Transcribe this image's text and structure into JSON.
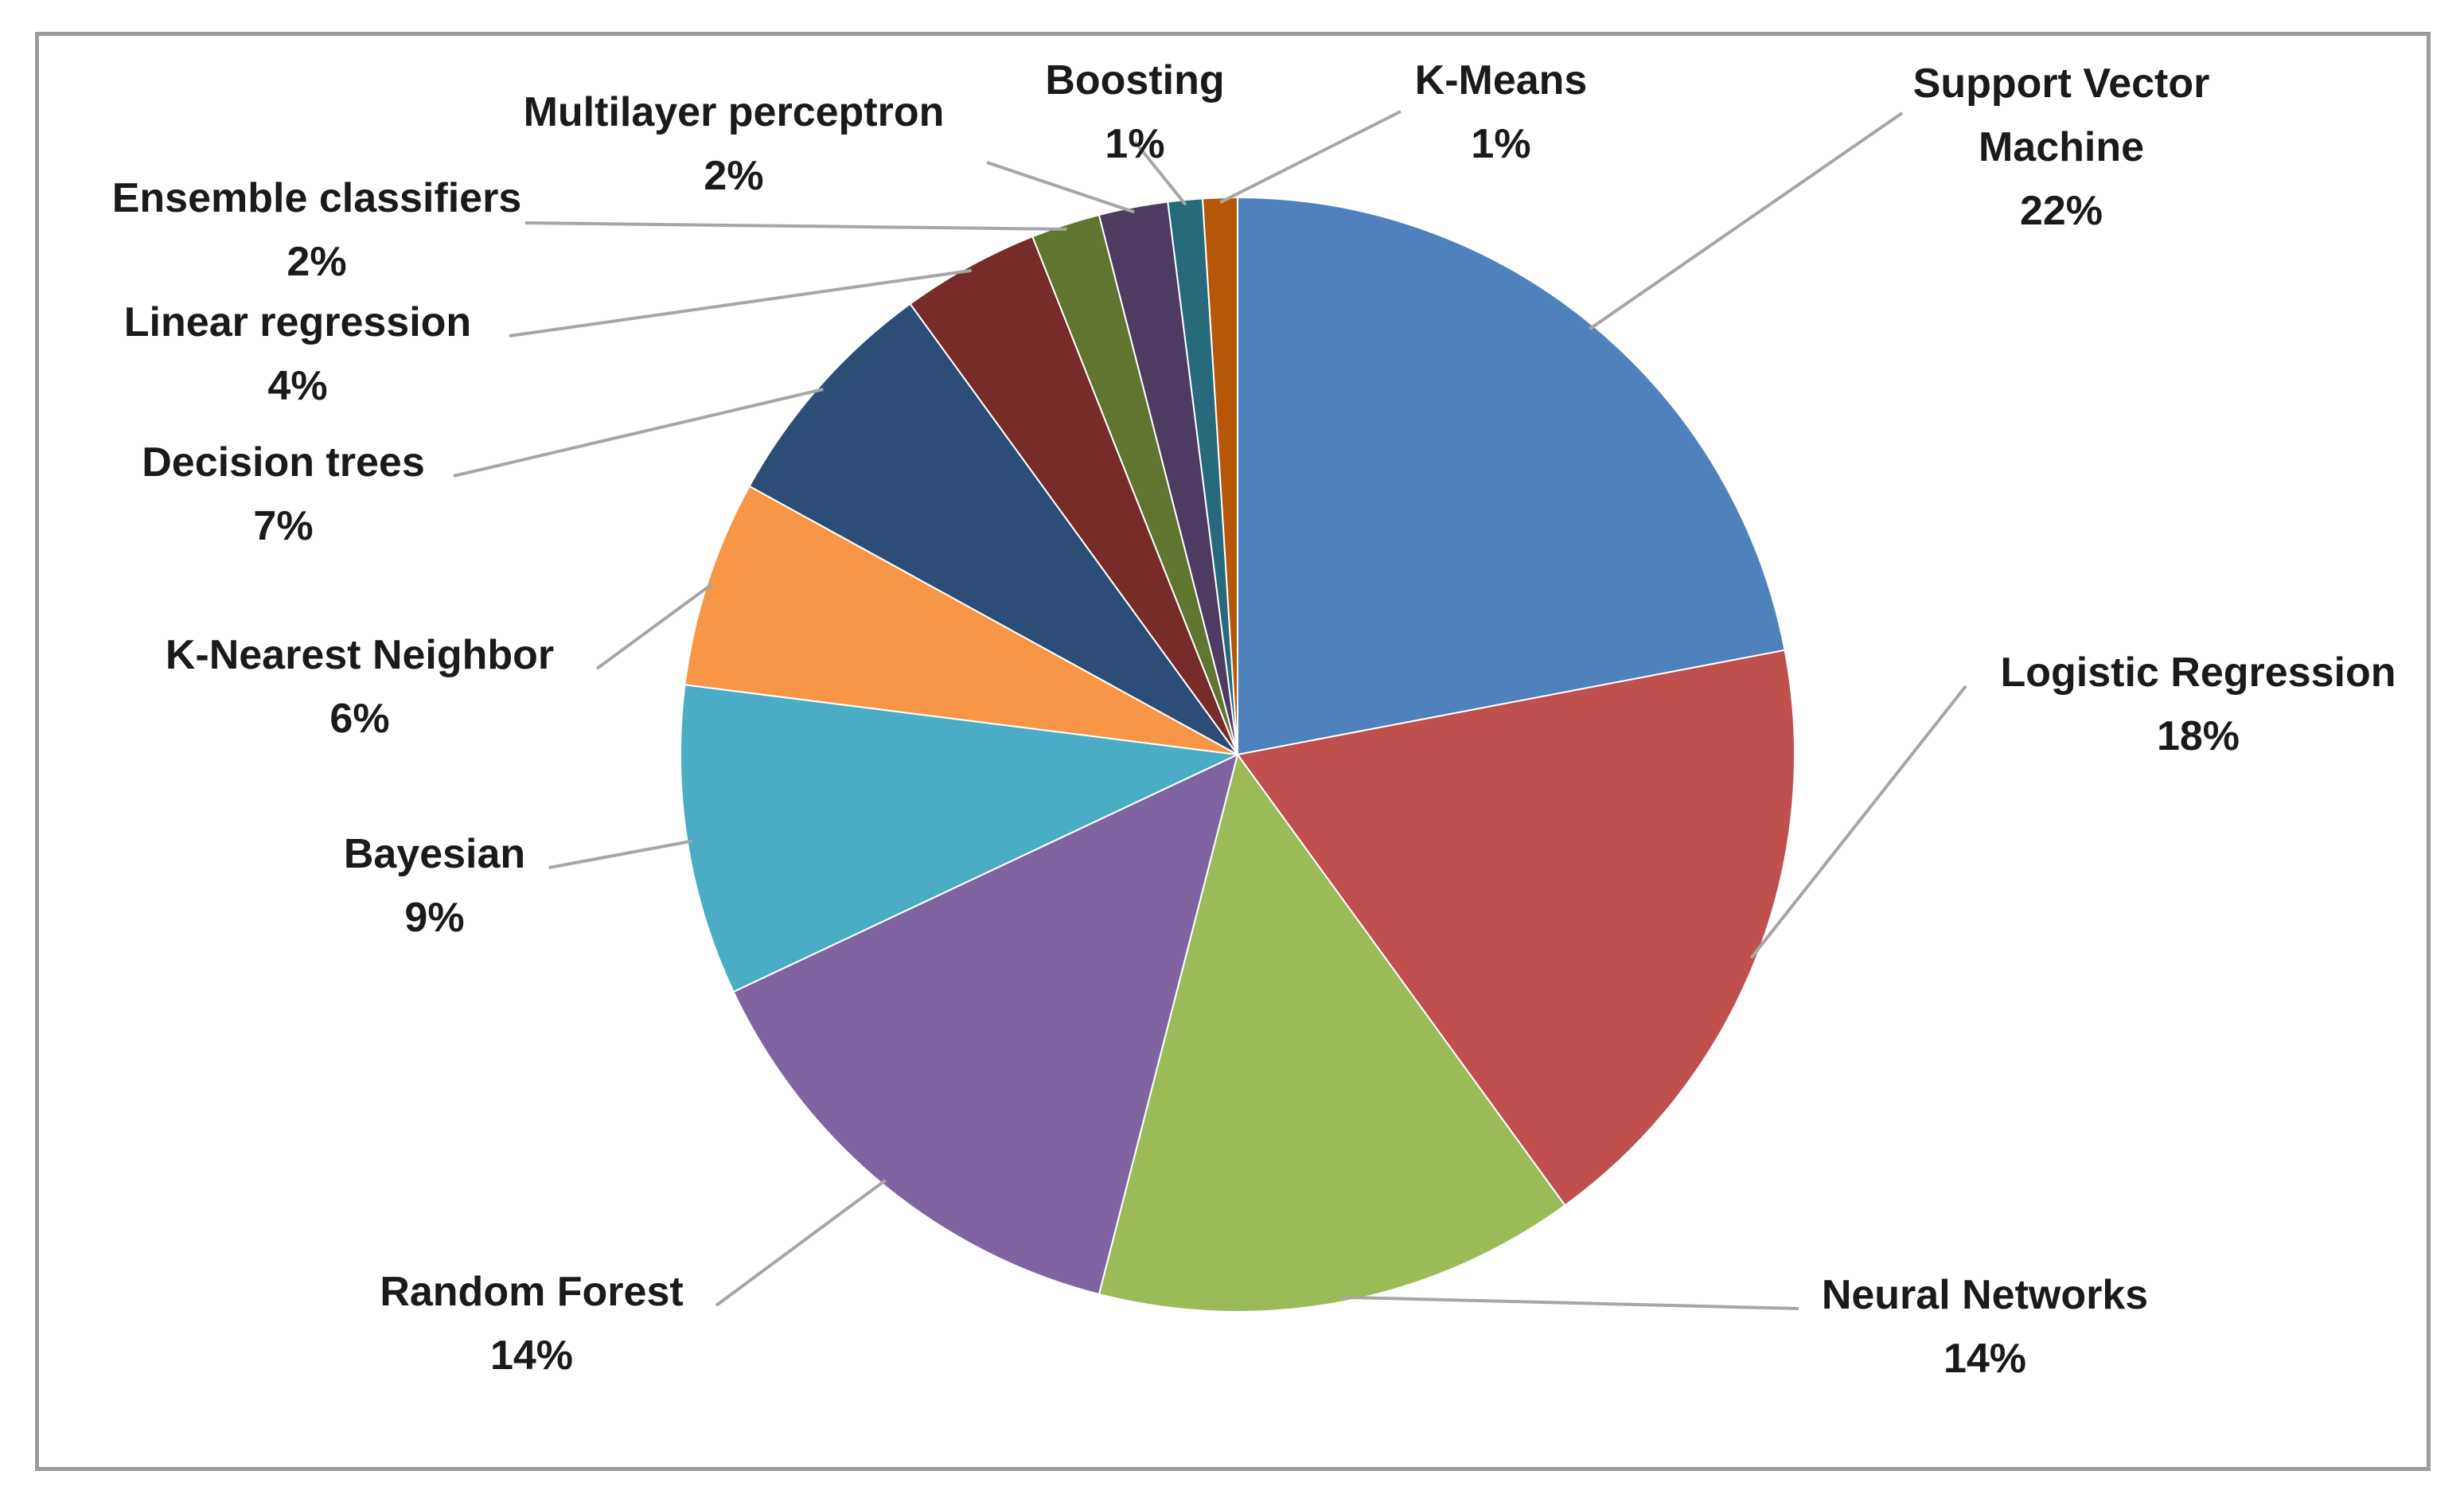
{
  "chart_data": {
    "type": "pie",
    "title": "",
    "unit": "%",
    "slices": [
      {
        "name": "Support Vector Machine",
        "label_lines": [
          "Support Vector",
          "Machine"
        ],
        "value": 22,
        "display": "22%",
        "color": "#4F81BD"
      },
      {
        "name": "Logistic Regression",
        "label_lines": [
          "Logistic Regression"
        ],
        "value": 18,
        "display": "18%",
        "color": "#C0504D"
      },
      {
        "name": "Neural Networks",
        "label_lines": [
          "Neural Networks"
        ],
        "value": 14,
        "display": "14%",
        "color": "#9BBB59"
      },
      {
        "name": "Random Forest",
        "label_lines": [
          "Random Forest"
        ],
        "value": 14,
        "display": "14%",
        "color": "#8064A2"
      },
      {
        "name": "Bayesian",
        "label_lines": [
          "Bayesian"
        ],
        "value": 9,
        "display": "9%",
        "color": "#4BACC6"
      },
      {
        "name": "K-Nearest Neighbor",
        "label_lines": [
          "K-Nearest Neighbor"
        ],
        "value": 6,
        "display": "6%",
        "color": "#F79646"
      },
      {
        "name": "Decision trees",
        "label_lines": [
          "Decision trees"
        ],
        "value": 7,
        "display": "7%",
        "color": "#2C4D75"
      },
      {
        "name": "Linear regression",
        "label_lines": [
          "Linear regression"
        ],
        "value": 4,
        "display": "4%",
        "color": "#772C2A"
      },
      {
        "name": "Ensemble classifiers",
        "label_lines": [
          "Ensemble classifiers"
        ],
        "value": 2,
        "display": "2%",
        "color": "#5F7530"
      },
      {
        "name": "Multilayer perceptron",
        "label_lines": [
          "Multilayer perceptron"
        ],
        "value": 2,
        "display": "2%",
        "color": "#4D3B62"
      },
      {
        "name": "Boosting",
        "label_lines": [
          "Boosting"
        ],
        "value": 1,
        "display": "1%",
        "color": "#276A7C"
      },
      {
        "name": "K-Means",
        "label_lines": [
          "K-Means"
        ],
        "value": 1,
        "display": "1%",
        "color": "#B65708"
      }
    ]
  }
}
